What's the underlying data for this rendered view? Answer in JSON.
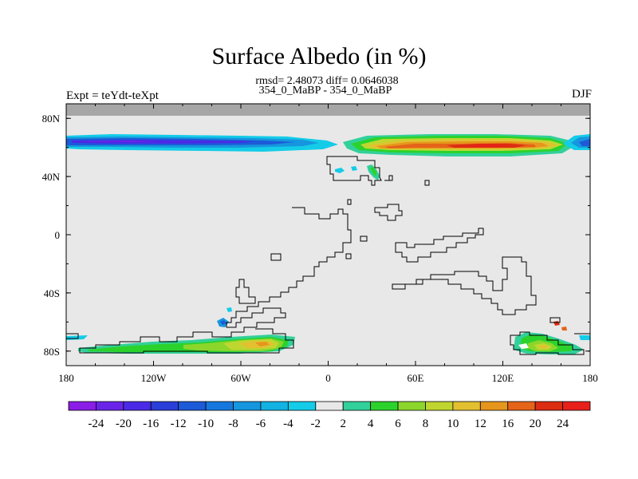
{
  "chart_data": {
    "type": "heatmap",
    "title": "Surface Albedo (in %)",
    "subtitle_stats": "rmsd= 2.48073 diff= 0.0646038",
    "subtitle_case": "354_0_MaBP - 354_0_MaBP",
    "left_label": "Expt = teYdt-teXpt",
    "right_label": "DJF",
    "x_ticks": [
      "180",
      "120W",
      "60W",
      "0",
      "60E",
      "120E",
      "180"
    ],
    "x_tick_values": [
      -180,
      -120,
      -60,
      0,
      60,
      120,
      180
    ],
    "y_ticks": [
      "80N",
      "40N",
      "0",
      "40S",
      "80S"
    ],
    "y_tick_values": [
      80,
      40,
      0,
      -40,
      -80
    ],
    "xlim": [
      -180,
      180
    ],
    "ylim": [
      -90,
      90
    ],
    "colorbar": {
      "labels": [
        "-24",
        "-20",
        "-16",
        "-12",
        "-10",
        "-8",
        "-6",
        "-4",
        "-2",
        "2",
        "4",
        "6",
        "8",
        "10",
        "12",
        "16",
        "20",
        "24"
      ],
      "colors": [
        "#8a1de6",
        "#6a24e8",
        "#4a2ae6",
        "#2a3ed8",
        "#1c5ad8",
        "#1678de",
        "#1696de",
        "#12b2e2",
        "#14cce8",
        "#e8e8e8",
        "#32d09a",
        "#2cd22c",
        "#8cd62c",
        "#c0d630",
        "#e2c030",
        "#e6961c",
        "#e4641a",
        "#dc2c12",
        "#e8201a"
      ]
    },
    "features": [
      {
        "name": "northern-negative-band",
        "lon_range": [
          -180,
          -10
        ],
        "lat_range": [
          58,
          70
        ],
        "min_value": -20
      },
      {
        "name": "northern-positive-band",
        "lon_range": [
          10,
          170
        ],
        "lat_range": [
          57,
          69
        ],
        "max_value": 24
      },
      {
        "name": "northern-dateline-negative",
        "lon_range": [
          165,
          180
        ],
        "lat_range": [
          60,
          68
        ],
        "min_value": -16
      },
      {
        "name": "southern-positive-patch-west",
        "lon_range": [
          -178,
          -22
        ],
        "lat_range": [
          -84,
          -70
        ],
        "max_value": 12
      },
      {
        "name": "southern-positive-patch-east",
        "lon_range": [
          124,
          176
        ],
        "lat_range": [
          -84,
          -70
        ],
        "max_value": 12
      }
    ]
  }
}
